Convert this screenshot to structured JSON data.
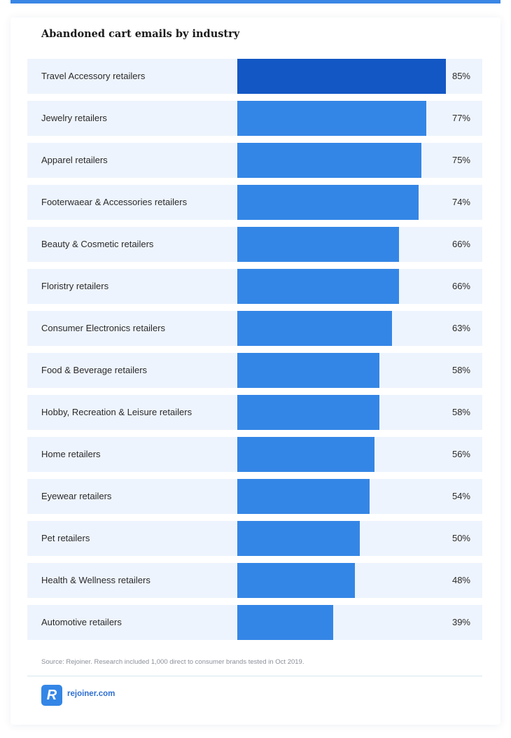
{
  "chart_data": {
    "type": "bar",
    "orientation": "horizontal",
    "title": "Abandoned cart emails by industry",
    "categories": [
      "Travel Accessory retailers",
      "Jewelry retailers",
      "Apparel retailers",
      "Footerwaear & Accessories retailers",
      "Beauty & Cosmetic retailers",
      "Floristry retailers",
      "Consumer Electronics retailers",
      "Food & Beverage retailers",
      "Hobby, Recreation & Leisure retailers",
      "Home retailers",
      "Eyewear retailers",
      "Pet retailers",
      "Health & Wellness retailers",
      "Automotive retailers"
    ],
    "values": [
      85,
      77,
      75,
      74,
      66,
      66,
      63,
      58,
      58,
      56,
      54,
      50,
      48,
      39
    ],
    "value_labels": [
      "85%",
      "77%",
      "75%",
      "74%",
      "66%",
      "66%",
      "63%",
      "58%",
      "58%",
      "56%",
      "54%",
      "50%",
      "48%",
      "39%"
    ],
    "xlim": [
      0,
      100
    ],
    "highlight_index": 0,
    "colors": {
      "bar": "#3486e6",
      "bar_highlight": "#1357c4",
      "row_bg": "#eef4fd"
    }
  },
  "footer": {
    "source": "Source: Rejoiner. Research included 1,000 direct to consumer brands tested in Oct 2019.",
    "logo_letter": "R",
    "brand": "rejoiner.com"
  }
}
